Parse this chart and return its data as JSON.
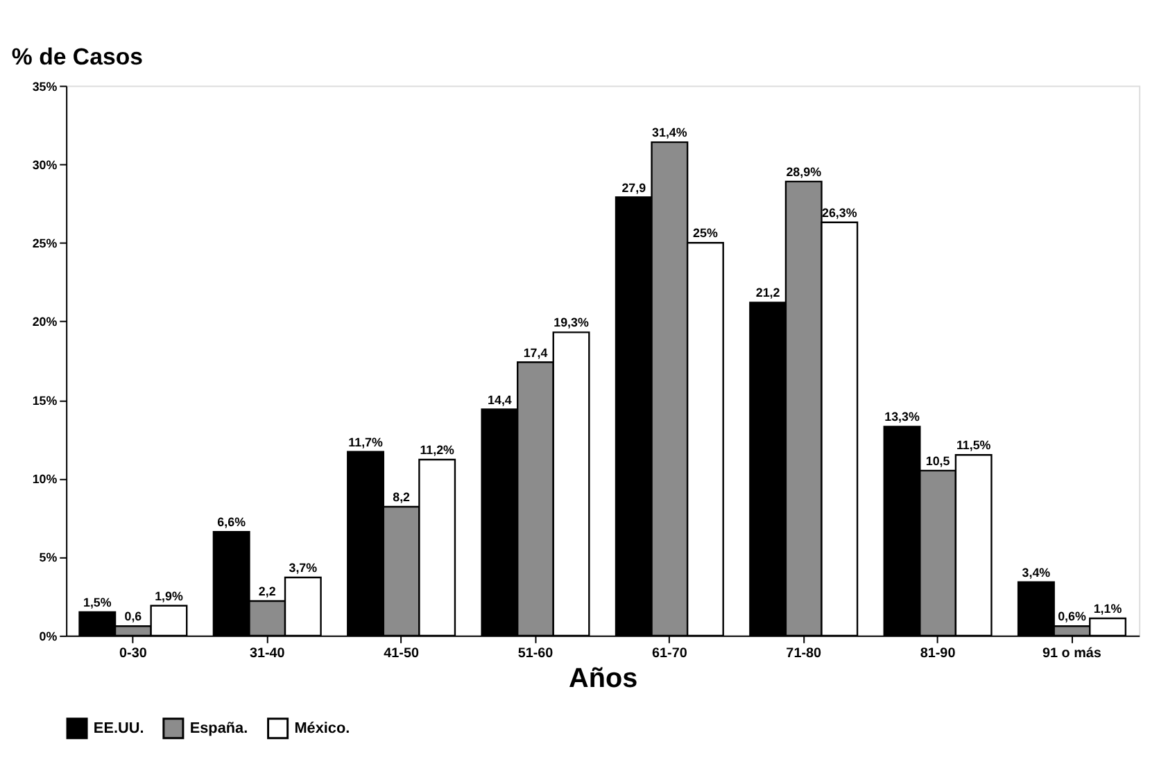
{
  "chart_data": {
    "type": "bar",
    "ylabel": "% de Casos",
    "xlabel": "Años",
    "categories": [
      "0-30",
      "31-40",
      "41-50",
      "51-60",
      "61-70",
      "71-80",
      "81-90",
      "91 o más"
    ],
    "series": [
      {
        "name": "EE.UU.",
        "color": "#000000",
        "values": [
          1.5,
          6.6,
          11.7,
          14.4,
          27.9,
          21.2,
          13.3,
          3.4
        ],
        "value_labels": [
          "1,5%",
          "6,6%",
          "11,7%",
          "14,4",
          "27,9",
          "21,2",
          "13,3%",
          "3,4%"
        ]
      },
      {
        "name": "España.",
        "color": "#8c8c8c",
        "values": [
          0.6,
          2.2,
          8.2,
          17.4,
          31.4,
          28.9,
          10.5,
          0.6
        ],
        "value_labels": [
          "0,6",
          "2,2",
          "8,2",
          "17,4",
          "31,4%",
          "28,9%",
          "10,5",
          "0,6%"
        ]
      },
      {
        "name": "México.",
        "color": "#ffffff",
        "values": [
          1.9,
          3.7,
          11.2,
          19.3,
          25,
          26.3,
          11.5,
          1.1
        ],
        "value_labels": [
          "1,9%",
          "3,7%",
          "11,2%",
          "19,3%",
          "25%",
          "26,3%",
          "11,5%",
          "1,1%"
        ]
      }
    ],
    "ylim": [
      0,
      35
    ],
    "yticks": [
      {
        "value": 0,
        "label": "0%"
      },
      {
        "value": 5,
        "label": "5%"
      },
      {
        "value": 10,
        "label": "10%"
      },
      {
        "value": 15,
        "label": "15%"
      },
      {
        "value": 20,
        "label": "20%"
      },
      {
        "value": 25,
        "label": "25%"
      },
      {
        "value": 30,
        "label": "30%"
      },
      {
        "value": 35,
        "label": "35%"
      }
    ],
    "legend": "bottom",
    "grid": false
  }
}
